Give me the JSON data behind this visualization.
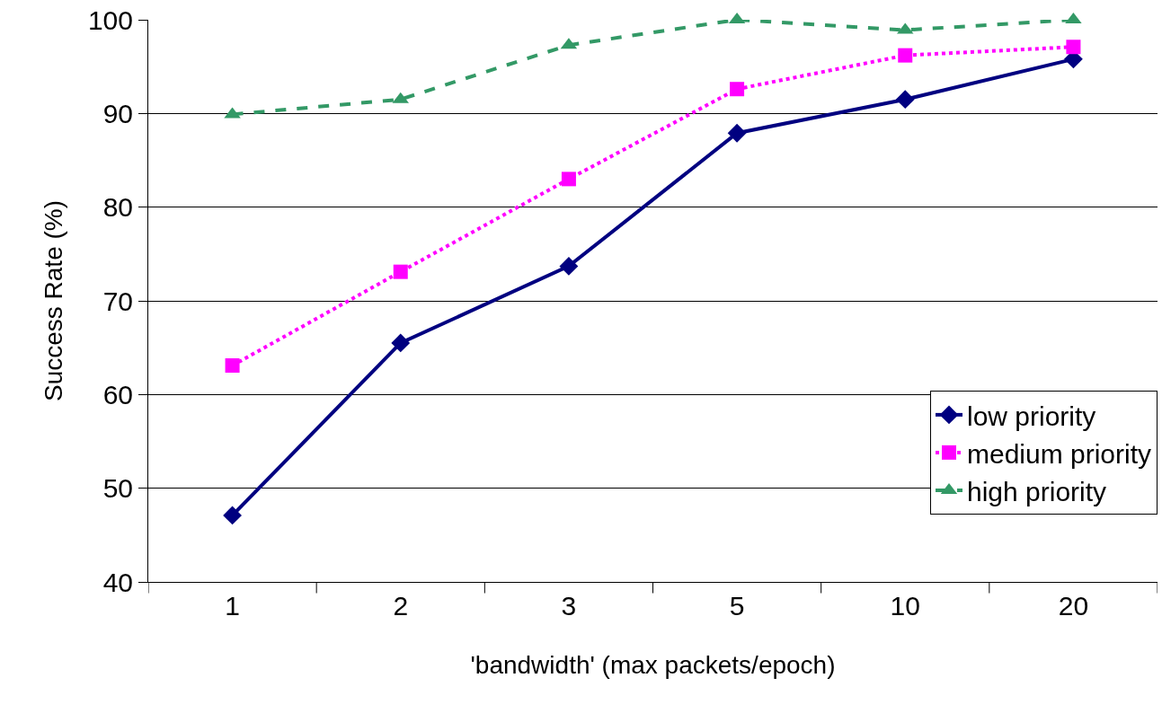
{
  "chart_data": {
    "type": "line",
    "xlabel": "'bandwidth' (max packets/epoch)",
    "ylabel": "Success Rate (%)",
    "categories": [
      "1",
      "2",
      "3",
      "5",
      "10",
      "20"
    ],
    "series": [
      {
        "name": "low priority",
        "color": "#000080",
        "values": [
          47.1,
          65.5,
          73.7,
          87.9,
          91.5,
          95.8
        ],
        "marker": "diamond",
        "line_style": "solid"
      },
      {
        "name": "medium priority",
        "color": "#ff00ff",
        "values": [
          63.1,
          73.1,
          83.0,
          92.6,
          96.2,
          97.1
        ],
        "marker": "square",
        "line_style": "dotted"
      },
      {
        "name": "high priority",
        "color": "#339966",
        "values": [
          89.9,
          91.5,
          97.3,
          100,
          98.9,
          100
        ],
        "marker": "triangle",
        "line_style": "dashed"
      }
    ],
    "ylim": [
      40,
      100
    ],
    "yticks": [
      40,
      50,
      60,
      70,
      80,
      90,
      100
    ],
    "grid": "y",
    "legend": "bottom right"
  }
}
